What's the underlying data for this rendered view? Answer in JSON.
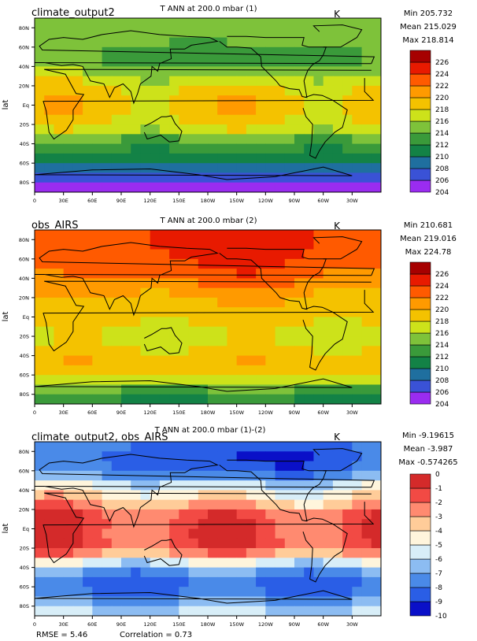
{
  "panels": [
    {
      "case": "climate_output2",
      "title": "T ANN at 200.0 mbar (1)",
      "units": "K",
      "stats": [
        "Min 205.732",
        "Mean 215.029",
        "Max 218.814"
      ],
      "footer": []
    },
    {
      "case": "obs_AIRS",
      "title": "T ANN at 200.0 mbar (2)",
      "units": "K",
      "stats": [
        "Min 210.681",
        "Mean 219.016",
        "Max 224.78"
      ],
      "footer": []
    },
    {
      "case": "climate_output2, obs_AIRS",
      "title": "T ANN at 200.0 mbar (1)-(2)",
      "units": "K",
      "stats": [
        "Min -9.19615",
        "Mean -3.987",
        "Max -0.574265"
      ],
      "footer": [
        "RMSE = 5.46",
        "Correlation = 0.73"
      ]
    }
  ],
  "chart_data": [
    {
      "type": "heatmap",
      "title": "T ANN at 200.0 mbar (1)",
      "case": "climate_output2",
      "units": "K",
      "ylabel": "lat",
      "xlim": [
        0,
        360
      ],
      "ylim": [
        -90,
        90
      ],
      "x_ticks": [
        "0",
        "30E",
        "60E",
        "90E",
        "120E",
        "150E",
        "180W",
        "150W",
        "120W",
        "90W",
        "60W",
        "30W"
      ],
      "y_ticks": [
        "80N",
        "60N",
        "40N",
        "20N",
        "Eq",
        "20S",
        "40S",
        "60S",
        "80S"
      ],
      "colorbar": {
        "levels": [
          204,
          206,
          208,
          210,
          212,
          214,
          216,
          218,
          220,
          222,
          224,
          226
        ],
        "colors": [
          "#9a2cf0",
          "#3a52d6",
          "#1f6f9f",
          "#138246",
          "#3a9a3a",
          "#7ec23a",
          "#cde21a",
          "#f4c200",
          "#ff9a00",
          "#ff5a00",
          "#e81a00",
          "#a60000"
        ]
      },
      "zonal_profile": {
        "lat": [
          -90,
          -80,
          -70,
          -60,
          -50,
          -40,
          -30,
          -20,
          -10,
          0,
          10,
          20,
          30,
          40,
          50,
          60,
          70,
          80,
          90
        ],
        "value": [
          205,
          206.5,
          208,
          211,
          212,
          213,
          216,
          218,
          219,
          219,
          219,
          218,
          216,
          214,
          213,
          214,
          215,
          215,
          215
        ]
      }
    },
    {
      "type": "heatmap",
      "title": "T ANN at 200.0 mbar (2)",
      "case": "obs_AIRS",
      "units": "K",
      "ylabel": "lat",
      "xlim": [
        0,
        360
      ],
      "ylim": [
        -90,
        90
      ],
      "x_ticks": [
        "0",
        "30E",
        "60E",
        "90E",
        "120E",
        "150E",
        "180W",
        "150W",
        "120W",
        "90W",
        "60W",
        "30W"
      ],
      "y_ticks": [
        "80N",
        "60N",
        "40N",
        "20N",
        "Eq",
        "20S",
        "40S",
        "60S",
        "80S"
      ],
      "colorbar": {
        "levels": [
          204,
          206,
          208,
          210,
          212,
          214,
          216,
          218,
          220,
          222,
          224,
          226
        ],
        "colors": [
          "#9a2cf0",
          "#3a52d6",
          "#1f6f9f",
          "#138246",
          "#3a9a3a",
          "#7ec23a",
          "#cde21a",
          "#f4c200",
          "#ff9a00",
          "#ff5a00",
          "#e81a00",
          "#a60000"
        ]
      },
      "zonal_profile": {
        "lat": [
          -90,
          -80,
          -70,
          -60,
          -50,
          -40,
          -30,
          -20,
          -10,
          0,
          10,
          20,
          30,
          40,
          50,
          60,
          70,
          80,
          90
        ],
        "value": [
          211,
          213,
          215,
          218,
          220,
          219,
          218,
          217,
          218,
          219,
          219,
          220,
          221,
          222,
          223,
          223.5,
          224,
          224,
          224
        ]
      }
    },
    {
      "type": "heatmap",
      "title": "T ANN at 200.0 mbar (1)-(2)",
      "case": "climate_output2, obs_AIRS",
      "units": "K",
      "ylabel": "lat",
      "xlim": [
        0,
        360
      ],
      "ylim": [
        -90,
        90
      ],
      "x_ticks": [
        "0",
        "30E",
        "60E",
        "90E",
        "120E",
        "150E",
        "180W",
        "150W",
        "120W",
        "90W",
        "60W",
        "30W"
      ],
      "y_ticks": [
        "80N",
        "60N",
        "40N",
        "20N",
        "Eq",
        "20S",
        "40S",
        "60S",
        "80S"
      ],
      "colorbar": {
        "levels": [
          -10,
          -9,
          -8,
          -7,
          -6,
          -5,
          -4,
          -3,
          -2,
          -1,
          0
        ],
        "colors": [
          "#0a10c8",
          "#2a5ee6",
          "#4a8ae8",
          "#8cbcf2",
          "#d8eef8",
          "#fff5dc",
          "#ffcc99",
          "#ff8a70",
          "#f24a44",
          "#d42a2a"
        ]
      },
      "zonal_profile": {
        "lat": [
          -90,
          -80,
          -70,
          -60,
          -50,
          -40,
          -30,
          -20,
          -10,
          0,
          10,
          20,
          30,
          40,
          50,
          60,
          70,
          80,
          90
        ],
        "value": [
          -5.5,
          -6.5,
          -7.5,
          -8.5,
          -8,
          -6.5,
          -4,
          -1.5,
          -1.5,
          -1.5,
          -1.5,
          -2,
          -4,
          -4.5,
          -6.5,
          -8,
          -8.5,
          -8.5,
          -8
        ]
      }
    }
  ]
}
